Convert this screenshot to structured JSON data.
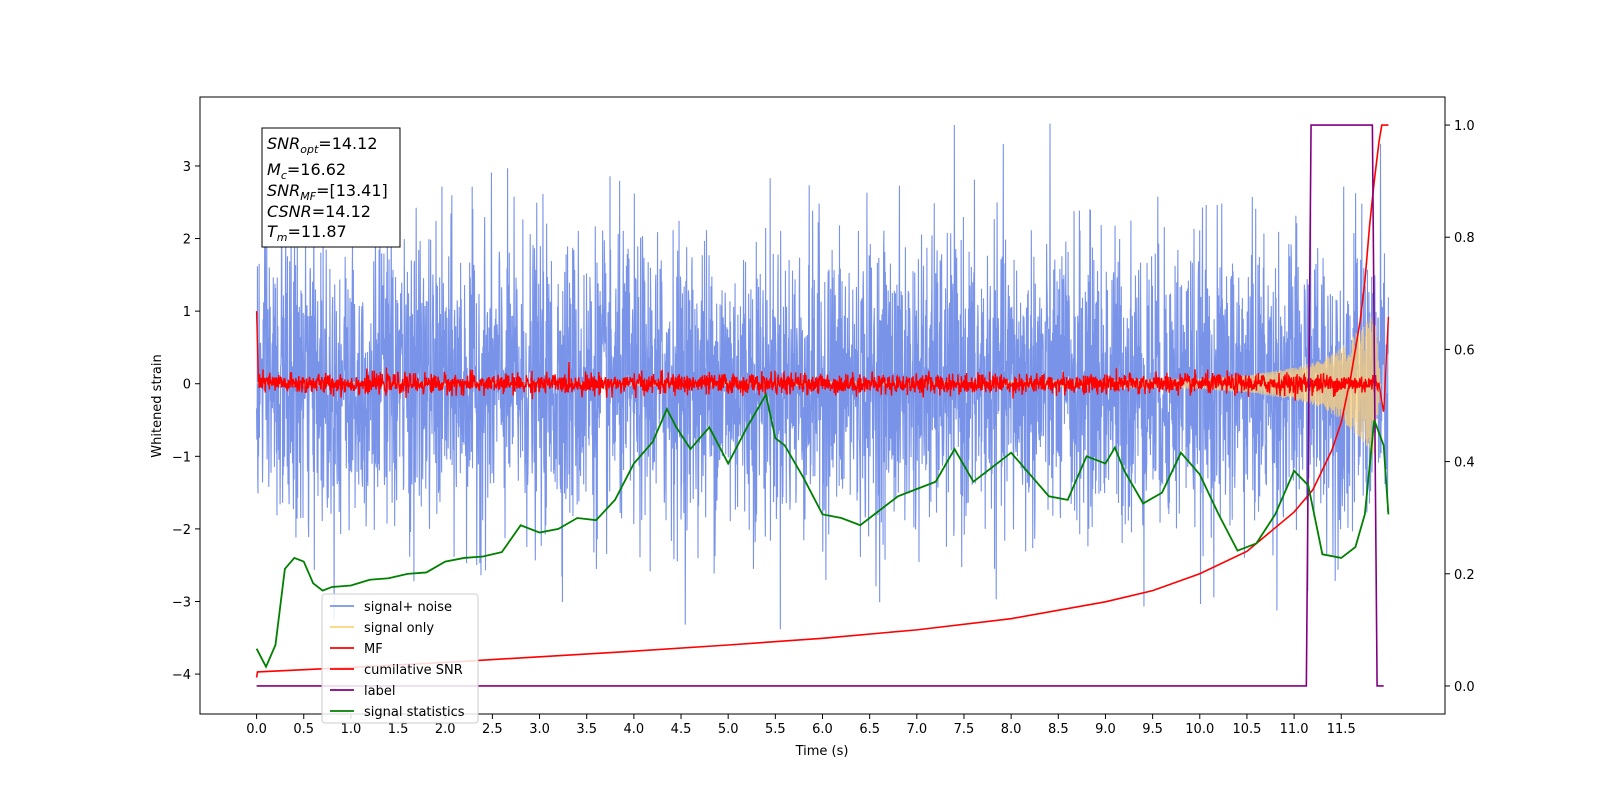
{
  "chart_data": {
    "type": "line",
    "title": "",
    "xlabel": "Time (s)",
    "ylabel": "Whitened strain",
    "xlim": [
      -0.6,
      12.6
    ],
    "ylim": [
      -4.55,
      3.95
    ],
    "y2lim": [
      -0.05,
      1.05
    ],
    "xticks": [
      "0.0",
      "0.5",
      "1.0",
      "1.5",
      "2.0",
      "2.5",
      "3.0",
      "3.5",
      "4.0",
      "4.5",
      "5.0",
      "5.5",
      "6.0",
      "6.5",
      "7.0",
      "7.5",
      "8.0",
      "8.5",
      "9.0",
      "9.5",
      "10.0",
      "10.5",
      "11.0",
      "11.5"
    ],
    "yticks_left": [
      "3",
      "2",
      "1",
      "0",
      "−1",
      "−2",
      "−3",
      "−4"
    ],
    "yticks_right": [
      "1.0",
      "0.8",
      "0.6",
      "0.4",
      "0.2",
      "0.0"
    ],
    "legend_location": "lower-left",
    "grid": false,
    "annotation": {
      "snr_opt": {
        "base": "SNR",
        "sub": "opt",
        "value": "=14.12"
      },
      "mc": {
        "base": "M",
        "sub": "c",
        "value": "=16.62"
      },
      "snr_mf": {
        "base": "SNR",
        "sub": "MF",
        "value": "=[13.41]"
      },
      "csnr": {
        "base": "CSNR",
        "sub": "",
        "value": "=14.12"
      },
      "tm": {
        "base": "T",
        "sub": "m",
        "value": "=11.87"
      }
    },
    "series": [
      {
        "name": "signal+ noise",
        "color": "#7893e8",
        "axis": "left",
        "description_values": "noisy whitened strain, approx range -3.6 to 3.6, spans t=0.0 to 12.0"
      },
      {
        "name": "signal only",
        "color": "#ffd27a",
        "axis": "left",
        "envelope_points": [
          [
            0.0,
            0.02
          ],
          [
            7.0,
            0.03
          ],
          [
            9.0,
            0.05
          ],
          [
            10.0,
            0.07
          ],
          [
            10.5,
            0.12
          ],
          [
            11.0,
            0.22
          ],
          [
            11.3,
            0.33
          ],
          [
            11.5,
            0.5
          ],
          [
            11.7,
            0.75
          ],
          [
            11.85,
            1.0
          ],
          [
            11.92,
            0.0
          ]
        ]
      },
      {
        "name": "MF",
        "color": "#ff0000",
        "axis": "left",
        "points": [
          [
            0.0,
            1.0
          ],
          [
            0.02,
            0.02
          ],
          [
            0.3,
            0.0
          ],
          [
            11.9,
            0.0
          ],
          [
            11.95,
            -0.4
          ],
          [
            12.0,
            0.92
          ]
        ]
      },
      {
        "name": "cumilative SNR",
        "color": "#ff0000",
        "axis": "right",
        "points": [
          [
            0.0,
            0.015
          ],
          [
            0.01,
            0.025
          ],
          [
            1.0,
            0.033
          ],
          [
            2.0,
            0.042
          ],
          [
            3.0,
            0.052
          ],
          [
            4.0,
            0.062
          ],
          [
            5.0,
            0.073
          ],
          [
            6.0,
            0.085
          ],
          [
            7.0,
            0.1
          ],
          [
            8.0,
            0.12
          ],
          [
            9.0,
            0.15
          ],
          [
            9.5,
            0.17
          ],
          [
            10.0,
            0.2
          ],
          [
            10.5,
            0.24
          ],
          [
            11.0,
            0.31
          ],
          [
            11.2,
            0.35
          ],
          [
            11.4,
            0.42
          ],
          [
            11.5,
            0.47
          ],
          [
            11.6,
            0.55
          ],
          [
            11.7,
            0.65
          ],
          [
            11.75,
            0.72
          ],
          [
            11.8,
            0.82
          ],
          [
            11.85,
            0.9
          ],
          [
            11.9,
            0.97
          ],
          [
            11.93,
            1.0
          ],
          [
            12.0,
            1.0
          ]
        ]
      },
      {
        "name": "label",
        "color": "#800080",
        "axis": "right",
        "points": [
          [
            0.0,
            0.0
          ],
          [
            11.13,
            0.0
          ],
          [
            11.18,
            1.0
          ],
          [
            11.83,
            1.0
          ],
          [
            11.88,
            0.0
          ],
          [
            11.95,
            0.0
          ]
        ]
      },
      {
        "name": "signal statistics",
        "color": "#008000",
        "axis": "left",
        "points": [
          [
            0.0,
            -3.65
          ],
          [
            0.1,
            -3.9
          ],
          [
            0.2,
            -3.6
          ],
          [
            0.3,
            -2.55
          ],
          [
            0.4,
            -2.4
          ],
          [
            0.5,
            -2.45
          ],
          [
            0.6,
            -2.75
          ],
          [
            0.7,
            -2.85
          ],
          [
            0.8,
            -2.8
          ],
          [
            1.0,
            -2.78
          ],
          [
            1.2,
            -2.7
          ],
          [
            1.4,
            -2.68
          ],
          [
            1.6,
            -2.62
          ],
          [
            1.8,
            -2.6
          ],
          [
            2.0,
            -2.45
          ],
          [
            2.2,
            -2.4
          ],
          [
            2.4,
            -2.38
          ],
          [
            2.6,
            -2.32
          ],
          [
            2.8,
            -1.95
          ],
          [
            3.0,
            -2.05
          ],
          [
            3.2,
            -2.0
          ],
          [
            3.4,
            -1.85
          ],
          [
            3.6,
            -1.88
          ],
          [
            3.8,
            -1.6
          ],
          [
            4.0,
            -1.1
          ],
          [
            4.2,
            -0.8
          ],
          [
            4.35,
            -0.35
          ],
          [
            4.45,
            -0.6
          ],
          [
            4.6,
            -0.9
          ],
          [
            4.8,
            -0.6
          ],
          [
            5.0,
            -1.1
          ],
          [
            5.2,
            -0.6
          ],
          [
            5.4,
            -0.15
          ],
          [
            5.5,
            -0.75
          ],
          [
            5.6,
            -0.85
          ],
          [
            5.8,
            -1.3
          ],
          [
            6.0,
            -1.8
          ],
          [
            6.2,
            -1.85
          ],
          [
            6.4,
            -1.95
          ],
          [
            6.6,
            -1.75
          ],
          [
            6.8,
            -1.55
          ],
          [
            7.0,
            -1.45
          ],
          [
            7.2,
            -1.35
          ],
          [
            7.4,
            -0.9
          ],
          [
            7.6,
            -1.35
          ],
          [
            7.8,
            -1.15
          ],
          [
            8.0,
            -0.95
          ],
          [
            8.2,
            -1.25
          ],
          [
            8.4,
            -1.55
          ],
          [
            8.6,
            -1.6
          ],
          [
            8.8,
            -1.0
          ],
          [
            9.0,
            -1.1
          ],
          [
            9.1,
            -0.88
          ],
          [
            9.2,
            -1.2
          ],
          [
            9.4,
            -1.65
          ],
          [
            9.6,
            -1.5
          ],
          [
            9.8,
            -0.95
          ],
          [
            10.0,
            -1.25
          ],
          [
            10.2,
            -1.8
          ],
          [
            10.4,
            -2.3
          ],
          [
            10.6,
            -2.2
          ],
          [
            10.8,
            -1.8
          ],
          [
            11.0,
            -1.2
          ],
          [
            11.15,
            -1.4
          ],
          [
            11.3,
            -2.35
          ],
          [
            11.5,
            -2.4
          ],
          [
            11.65,
            -2.25
          ],
          [
            11.75,
            -1.8
          ],
          [
            11.85,
            -0.5
          ],
          [
            11.95,
            -0.85
          ],
          [
            12.0,
            -1.8
          ]
        ]
      }
    ]
  }
}
